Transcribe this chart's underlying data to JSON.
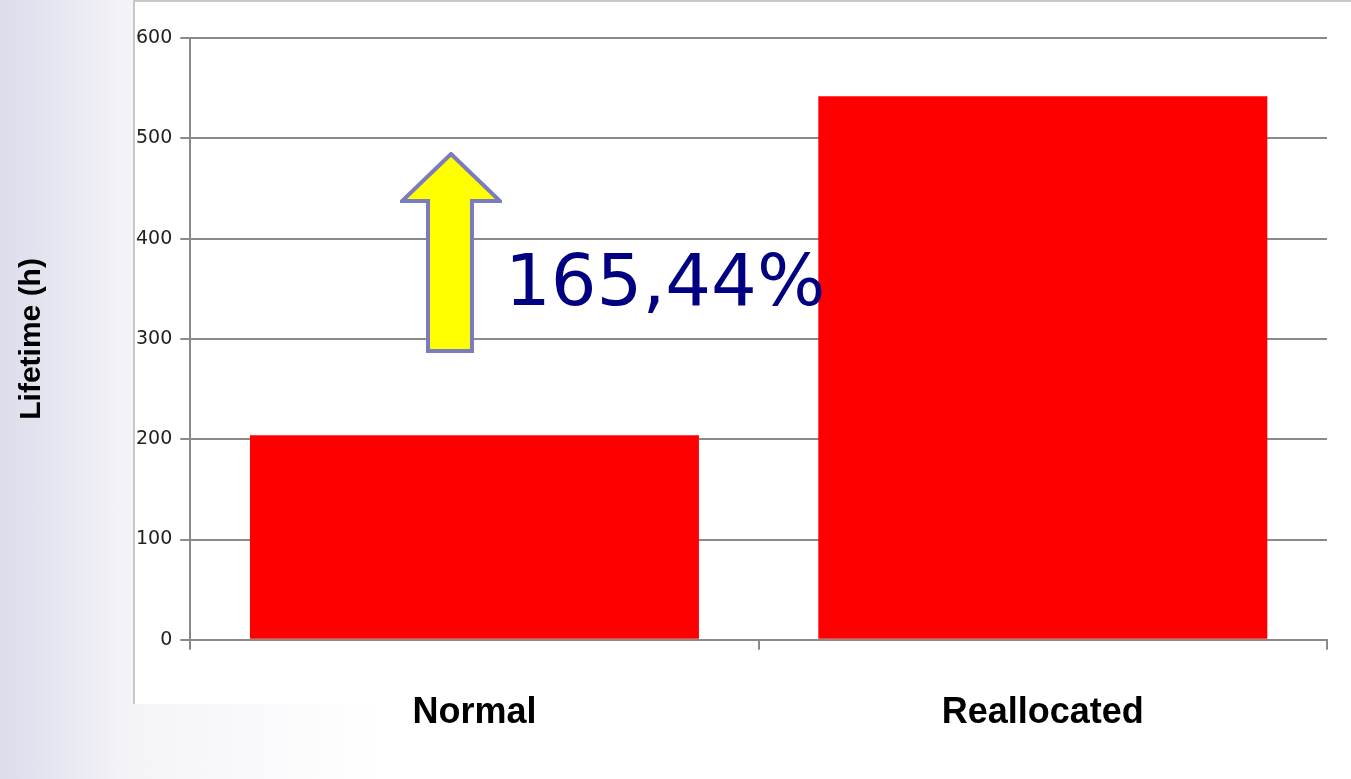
{
  "chart_data": {
    "type": "bar",
    "ylabel": "Lifetime (h)",
    "categories": [
      "Normal",
      "Reallocated"
    ],
    "values": [
      204,
      542
    ],
    "color": "#ff0000",
    "ylim": [
      0,
      600
    ],
    "yticks": [
      0,
      100,
      200,
      300,
      400,
      500,
      600
    ],
    "grid": "y",
    "legend": false,
    "annotations": [
      "165,44%"
    ]
  }
}
